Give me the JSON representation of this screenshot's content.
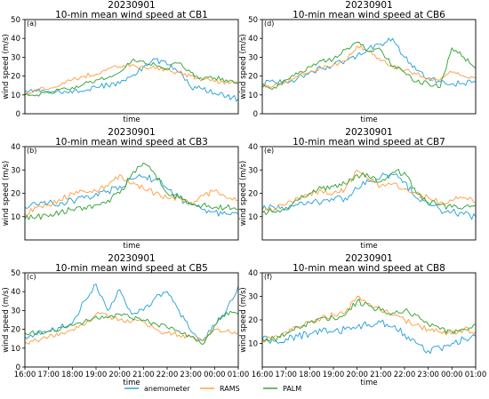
{
  "figure": {
    "legend_placement": "bottom-center"
  },
  "legend": [
    {
      "name": "anemometer",
      "color": "#1f9fd6"
    },
    {
      "name": "RAMS",
      "color": "#ff9b3d"
    },
    {
      "name": "PALM",
      "color": "#2ca02c"
    }
  ],
  "chart_data": [
    {
      "type": "line",
      "panel_label": "(a)",
      "title_line1": "20230901",
      "title_line2": "10-min mean wind speed at CB1",
      "xlabel": "time",
      "ylabel": "wind speed (m/s)",
      "ylim": [
        0,
        50
      ],
      "yticks": [
        0,
        10,
        20,
        30,
        40,
        50
      ],
      "xlim": [
        "16:00",
        "01:00"
      ],
      "xticks": [],
      "grid": false,
      "x": [
        "16:00",
        "16:30",
        "17:00",
        "17:30",
        "18:00",
        "18:30",
        "19:00",
        "19:30",
        "20:00",
        "20:30",
        "21:00",
        "21:30",
        "22:00",
        "22:30",
        "23:00",
        "23:30",
        "00:00",
        "00:30",
        "01:00"
      ],
      "series": [
        {
          "name": "anemometer",
          "values": [
            12,
            12,
            12,
            11,
            11,
            12,
            14,
            15,
            16,
            20,
            25,
            29,
            26,
            22,
            14,
            13,
            11,
            9,
            8
          ]
        },
        {
          "name": "RAMS",
          "values": [
            10,
            13,
            13,
            15,
            18,
            20,
            21,
            24,
            25,
            26,
            25,
            24,
            23,
            22,
            20,
            18,
            17,
            17,
            16
          ]
        },
        {
          "name": "PALM",
          "values": [
            10,
            10,
            11,
            13,
            14,
            16,
            18,
            19,
            22,
            28,
            28,
            26,
            24,
            27,
            22,
            18,
            19,
            18,
            16
          ]
        }
      ]
    },
    {
      "type": "line",
      "panel_label": "(d)",
      "title_line1": "20230901",
      "title_line2": "10-min mean wind speed at CB6",
      "xlabel": "time",
      "ylabel": "wind speed (m/s)",
      "ylim": [
        0,
        50
      ],
      "yticks": [
        0,
        10,
        20,
        30,
        40,
        50
      ],
      "xlim": [
        "16:00",
        "01:00"
      ],
      "xticks": [],
      "grid": false,
      "x": [
        "16:00",
        "16:30",
        "17:00",
        "17:30",
        "18:00",
        "18:30",
        "19:00",
        "19:30",
        "20:00",
        "20:30",
        "21:00",
        "21:30",
        "22:00",
        "22:30",
        "23:00",
        "23:30",
        "00:00",
        "00:30",
        "01:00"
      ],
      "series": [
        {
          "name": "anemometer",
          "values": [
            16,
            17,
            17,
            19,
            22,
            24,
            26,
            28,
            31,
            35,
            37,
            40,
            30,
            23,
            19,
            17,
            16,
            16,
            17
          ]
        },
        {
          "name": "RAMS",
          "values": [
            15,
            15,
            17,
            20,
            22,
            24,
            26,
            28,
            36,
            33,
            28,
            25,
            23,
            21,
            19,
            18,
            22,
            20,
            19
          ]
        },
        {
          "name": "PALM",
          "values": [
            14,
            14,
            18,
            21,
            25,
            28,
            29,
            34,
            38,
            33,
            34,
            25,
            22,
            17,
            16,
            14,
            35,
            30,
            24
          ]
        }
      ]
    },
    {
      "type": "line",
      "panel_label": "(b)",
      "title_line1": "20230901",
      "title_line2": "10-min mean wind speed at CB3",
      "xlabel": "time",
      "ylabel": "wind speed (m/s)",
      "ylim": [
        0,
        40
      ],
      "yticks": [
        10,
        20,
        30,
        40
      ],
      "xlim": [
        "16:00",
        "01:00"
      ],
      "xticks": [],
      "grid": false,
      "x": [
        "16:00",
        "16:30",
        "17:00",
        "17:30",
        "18:00",
        "18:30",
        "19:00",
        "19:30",
        "20:00",
        "20:30",
        "21:00",
        "21:30",
        "22:00",
        "22:30",
        "23:00",
        "23:30",
        "00:00",
        "00:30",
        "01:00"
      ],
      "series": [
        {
          "name": "anemometer",
          "values": [
            14,
            15,
            16,
            16,
            17,
            18,
            20,
            21,
            23,
            26,
            27,
            26,
            22,
            18,
            15,
            13,
            12,
            11,
            11
          ]
        },
        {
          "name": "RAMS",
          "values": [
            11,
            14,
            15,
            17,
            20,
            21,
            21,
            23,
            28,
            24,
            22,
            20,
            18,
            18,
            16,
            19,
            21,
            18,
            17
          ]
        },
        {
          "name": "PALM",
          "values": [
            9,
            10,
            10,
            12,
            13,
            14,
            15,
            17,
            20,
            28,
            33,
            28,
            20,
            18,
            16,
            15,
            14,
            14,
            13
          ]
        }
      ]
    },
    {
      "type": "line",
      "panel_label": "(e)",
      "title_line1": "20230901",
      "title_line2": "10-min mean wind speed at CB7",
      "xlabel": "time",
      "ylabel": "wind speed (m/s)",
      "ylim": [
        0,
        40
      ],
      "yticks": [
        10,
        20,
        30,
        40
      ],
      "xlim": [
        "16:00",
        "01:00"
      ],
      "xticks": [],
      "grid": false,
      "x": [
        "16:00",
        "16:30",
        "17:00",
        "17:30",
        "18:00",
        "18:30",
        "19:00",
        "19:30",
        "20:00",
        "20:30",
        "21:00",
        "21:30",
        "22:00",
        "22:30",
        "23:00",
        "23:30",
        "00:00",
        "00:30",
        "01:00"
      ],
      "series": [
        {
          "name": "anemometer",
          "values": [
            13,
            14,
            14,
            15,
            16,
            16,
            17,
            18,
            22,
            25,
            27,
            28,
            25,
            18,
            15,
            13,
            12,
            11,
            10
          ]
        },
        {
          "name": "RAMS",
          "values": [
            12,
            13,
            15,
            18,
            20,
            21,
            20,
            22,
            30,
            26,
            23,
            24,
            22,
            20,
            18,
            16,
            17,
            18,
            16
          ]
        },
        {
          "name": "PALM",
          "values": [
            12,
            12,
            13,
            17,
            20,
            22,
            23,
            24,
            28,
            27,
            25,
            29,
            29,
            20,
            16,
            15,
            14,
            14,
            15
          ]
        }
      ]
    },
    {
      "type": "line",
      "panel_label": "(c)",
      "title_line1": "20230901",
      "title_line2": "10-min mean wind speed at CB5",
      "xlabel": "time",
      "ylabel": "wind speed (m/s)",
      "ylim": [
        0,
        50
      ],
      "yticks": [
        0,
        10,
        20,
        30,
        40,
        50
      ],
      "xlim": [
        "16:00",
        "01:00"
      ],
      "xticks": [
        "16:00",
        "17:00",
        "18:00",
        "19:00",
        "20:00",
        "21:00",
        "22:00",
        "23:00",
        "00:00",
        "01:00"
      ],
      "grid": false,
      "x": [
        "16:00",
        "16:30",
        "17:00",
        "17:30",
        "18:00",
        "18:30",
        "19:00",
        "19:30",
        "20:00",
        "20:30",
        "21:00",
        "21:30",
        "22:00",
        "22:30",
        "23:00",
        "23:30",
        "00:00",
        "00:30",
        "01:00"
      ],
      "series": [
        {
          "name": "anemometer",
          "values": [
            16,
            17,
            19,
            21,
            23,
            35,
            44,
            30,
            41,
            28,
            30,
            37,
            40,
            30,
            19,
            14,
            22,
            30,
            43
          ]
        },
        {
          "name": "RAMS",
          "values": [
            13,
            14,
            16,
            18,
            20,
            22,
            28,
            27,
            25,
            24,
            24,
            20,
            18,
            17,
            16,
            14,
            20,
            19,
            18
          ]
        },
        {
          "name": "PALM",
          "values": [
            18,
            18,
            19,
            20,
            22,
            24,
            27,
            26,
            28,
            26,
            25,
            23,
            21,
            19,
            16,
            12,
            22,
            29,
            28
          ]
        }
      ]
    },
    {
      "type": "line",
      "panel_label": "(f)",
      "title_line1": "20230901",
      "title_line2": "10-min mean wind speed at CB8",
      "xlabel": "time",
      "ylabel": "wind speed (m/s)",
      "ylim": [
        0,
        40
      ],
      "yticks": [
        10,
        20,
        30,
        40
      ],
      "xlim": [
        "16:00",
        "01:00"
      ],
      "xticks": [
        "16:00",
        "17:00",
        "18:00",
        "19:00",
        "20:00",
        "21:00",
        "22:00",
        "23:00",
        "00:00",
        "01:00"
      ],
      "grid": false,
      "x": [
        "16:00",
        "16:30",
        "17:00",
        "17:30",
        "18:00",
        "18:30",
        "19:00",
        "19:30",
        "20:00",
        "20:30",
        "21:00",
        "21:30",
        "22:00",
        "22:30",
        "23:00",
        "23:30",
        "00:00",
        "00:30",
        "01:00"
      ],
      "series": [
        {
          "name": "anemometer",
          "values": [
            12,
            11,
            12,
            13,
            14,
            15,
            15,
            16,
            17,
            18,
            19,
            17,
            14,
            10,
            7,
            8,
            10,
            12,
            13
          ]
        },
        {
          "name": "RAMS",
          "values": [
            11,
            13,
            15,
            17,
            19,
            21,
            22,
            23,
            30,
            27,
            24,
            22,
            20,
            18,
            16,
            15,
            14,
            16,
            15
          ]
        },
        {
          "name": "PALM",
          "values": [
            12,
            12,
            14,
            17,
            19,
            21,
            21,
            22,
            28,
            26,
            24,
            23,
            24,
            22,
            18,
            16,
            15,
            16,
            18
          ]
        }
      ]
    }
  ]
}
